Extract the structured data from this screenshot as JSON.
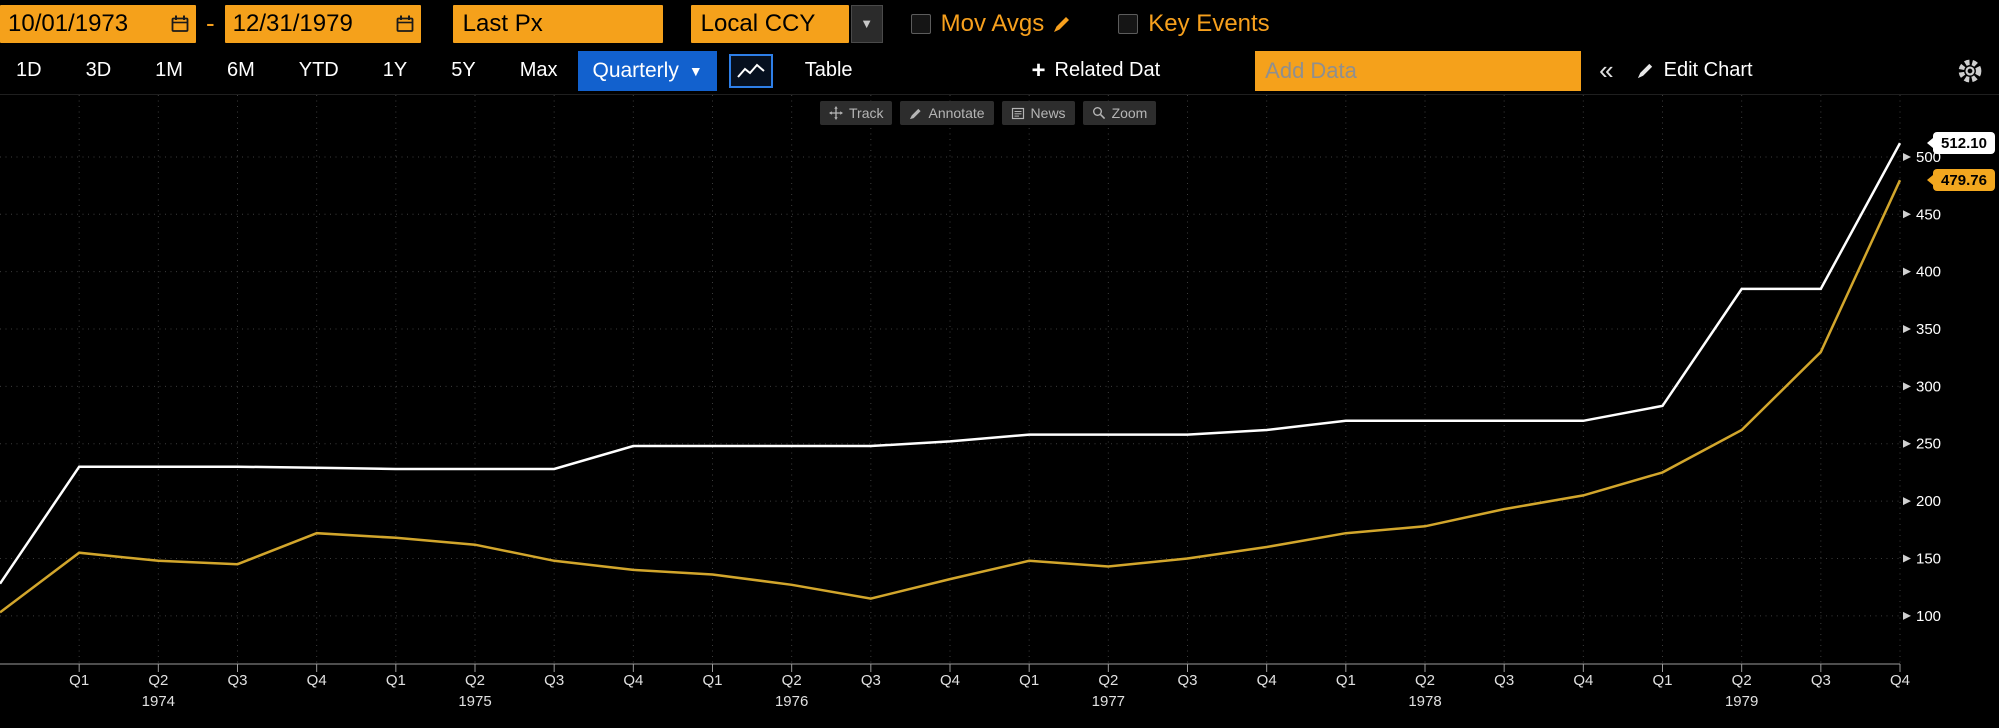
{
  "toolbar_top": {
    "date_start": "10/01/1973",
    "date_separator": "-",
    "date_end": "12/31/1979",
    "price_field": "Last Px",
    "currency": "Local CCY",
    "currency_arrow": "▼",
    "mov_avgs_label": "Mov Avgs",
    "key_events_label": "Key Events"
  },
  "toolbar_tabs": {
    "periods": [
      "1D",
      "3D",
      "1M",
      "6M",
      "YTD",
      "1Y",
      "5Y",
      "Max"
    ],
    "frequency_label": "Quarterly",
    "frequency_arrow": "▼",
    "table_label": "Table",
    "related_plus": "+",
    "related_label": "Related Dat",
    "add_data_placeholder": "Add Data",
    "collapse_label": "«",
    "edit_chart_label": "Edit Chart"
  },
  "chart_tools": {
    "track": "Track",
    "annotate": "Annotate",
    "news": "News",
    "zoom": "Zoom"
  },
  "colors": {
    "field_amber": "#F5A11B",
    "accent_blue": "#1261CE",
    "series_white": "#FFFFFF",
    "series_amber": "#D2A62C"
  },
  "chart_data": {
    "type": "line",
    "title": "",
    "start_quarter": "1973 Q4",
    "x_ticks": [
      "Q1",
      "Q2",
      "Q3",
      "Q4",
      "Q1",
      "Q2",
      "Q3",
      "Q4",
      "Q1",
      "Q2",
      "Q3",
      "Q4",
      "Q1",
      "Q2",
      "Q3",
      "Q4",
      "Q1",
      "Q2",
      "Q3",
      "Q4",
      "Q1",
      "Q2",
      "Q3",
      "Q4"
    ],
    "year_labels": [
      {
        "year": "1974",
        "index": 2
      },
      {
        "year": "1975",
        "index": 6
      },
      {
        "year": "1976",
        "index": 10
      },
      {
        "year": "1977",
        "index": 14
      },
      {
        "year": "1978",
        "index": 18
      },
      {
        "year": "1979",
        "index": 22
      }
    ],
    "y_axis": {
      "min": 58,
      "max": 554,
      "ticks": [
        100,
        150,
        200,
        250,
        300,
        350,
        400,
        450,
        500
      ]
    },
    "grid": "dotted",
    "series": [
      {
        "name": "series-1-last-px",
        "color": "#FFFFFF",
        "last_badge": "512.10",
        "values": [
          128,
          230,
          230,
          230,
          229,
          228,
          228,
          228,
          248,
          248,
          248,
          248,
          252,
          258,
          258,
          258,
          262,
          270,
          270,
          270,
          270,
          283,
          385,
          385,
          512.1
        ]
      },
      {
        "name": "series-2-last-px",
        "color": "#D2A62C",
        "last_badge": "479.76",
        "values": [
          103,
          155,
          148,
          145,
          172,
          168,
          162,
          148,
          140,
          136,
          127,
          115,
          132,
          148,
          143,
          150,
          160,
          172,
          178,
          193,
          205,
          225,
          262,
          330,
          479.76
        ]
      }
    ]
  }
}
